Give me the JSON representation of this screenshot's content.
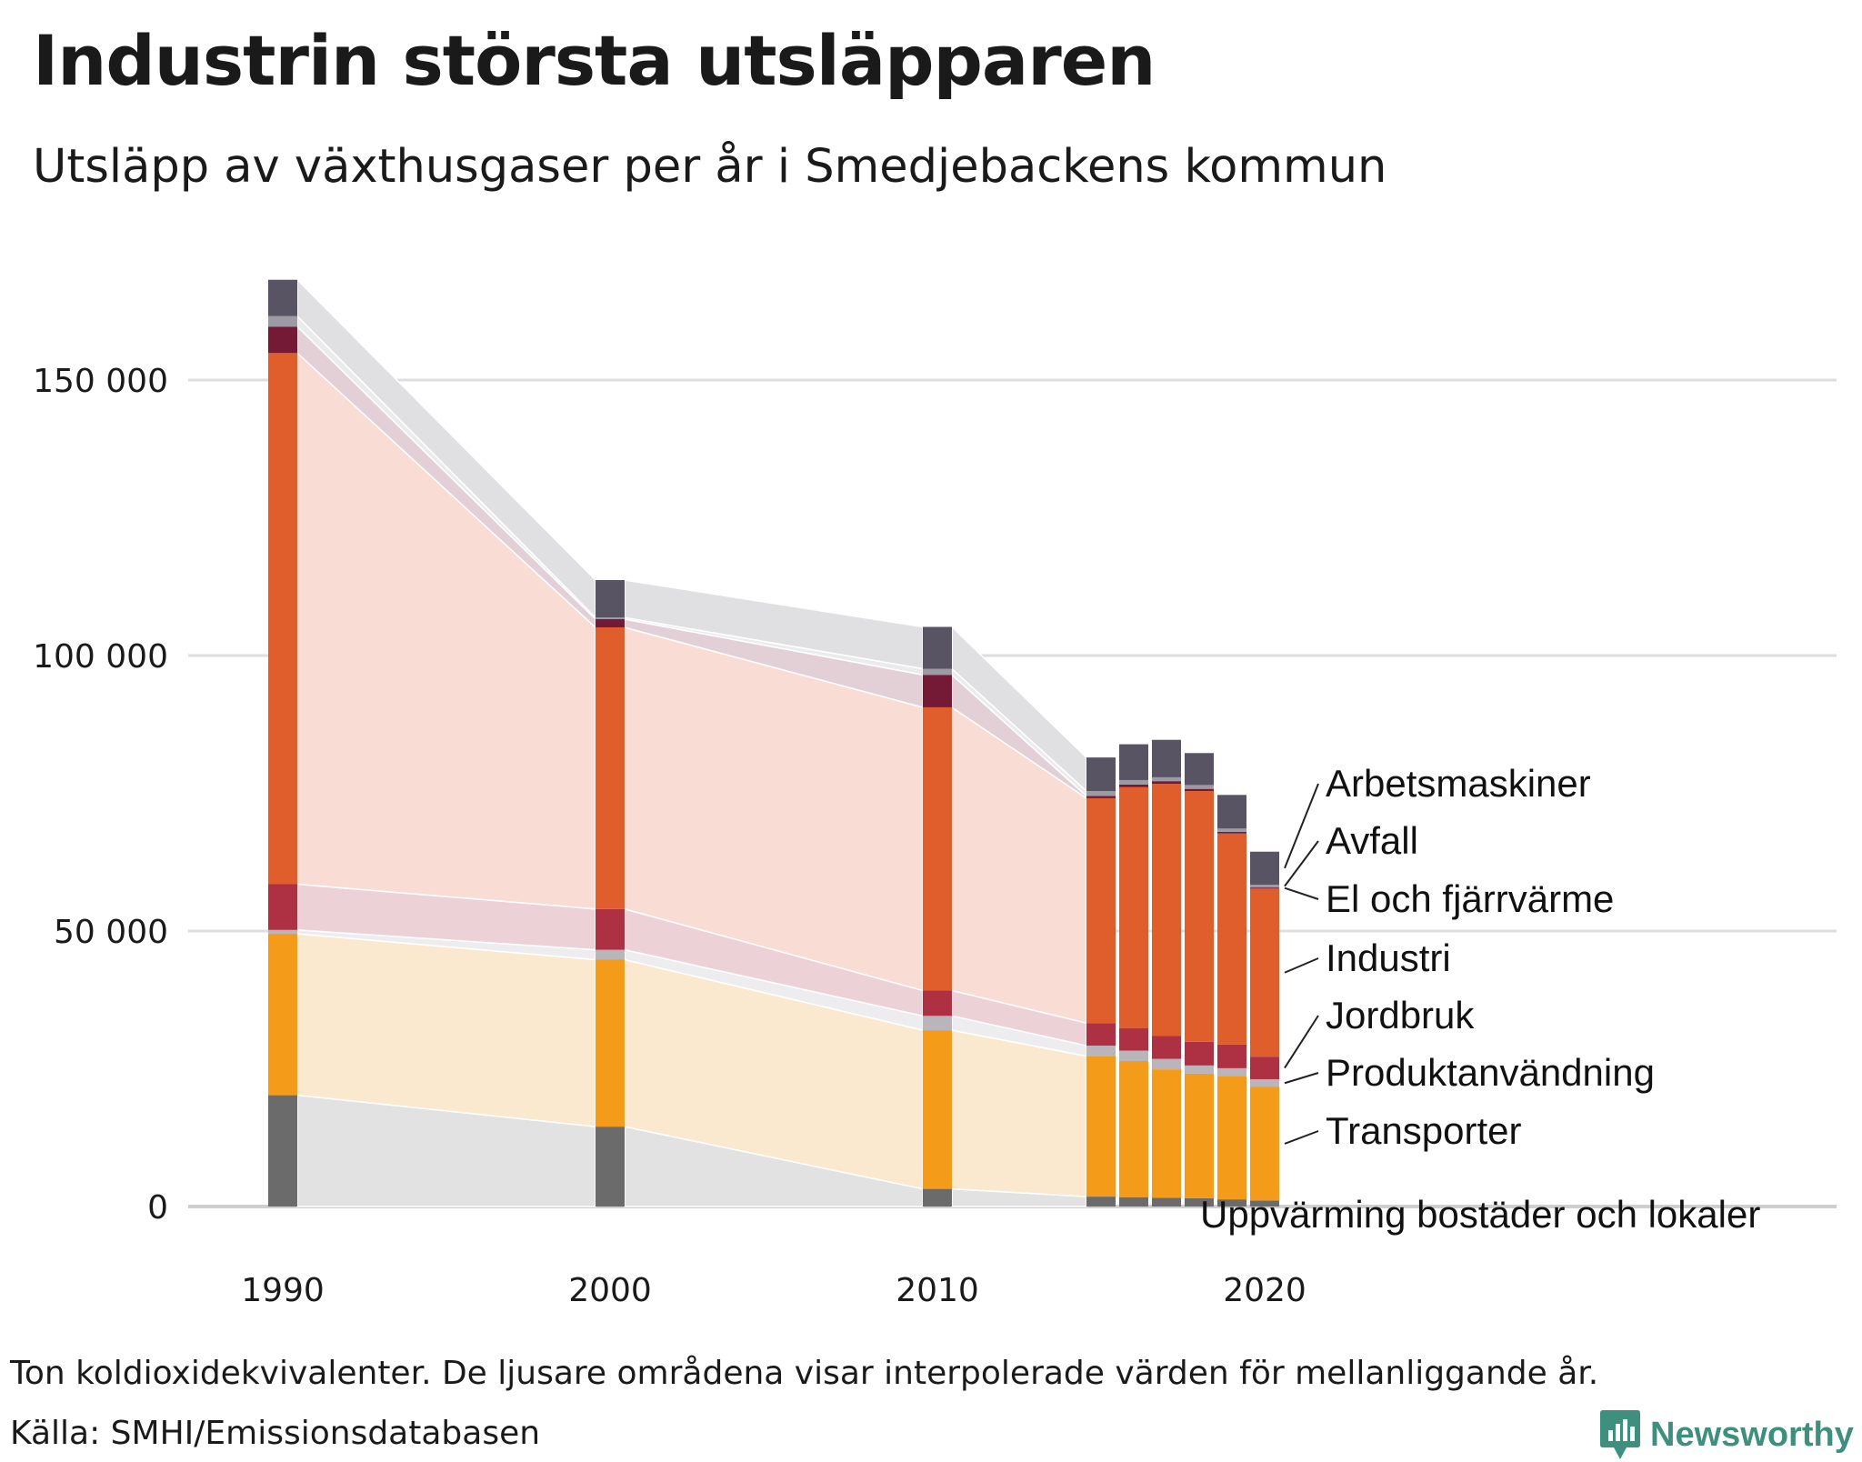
{
  "title": "Industrin största utsläpparen",
  "subtitle": "Utsläpp av växthusgaser per år i Smedjebackens kommun",
  "footnote": "Ton koldioxidekvivalenter. De ljusare områdena visar interpolerade värden för mellanliggande år.",
  "source": "Källa: SMHI/Emissionsdatabasen",
  "brand": "Newsworthy",
  "chart_data": {
    "type": "bar",
    "stacked": true,
    "x": [
      1990,
      2000,
      2010,
      2015,
      2016,
      2017,
      2018,
      2019,
      2020
    ],
    "x_ticks": [
      "1990",
      "2000",
      "2010",
      "2020"
    ],
    "y_ticks": [
      "0",
      "50 000",
      "100 000",
      "150 000"
    ],
    "y_tick_values": [
      0,
      50000,
      100000,
      150000
    ],
    "ylim": [
      0,
      170000
    ],
    "xlim": [
      1985,
      2037
    ],
    "grid": true,
    "interpolated_bands_between_measured_years": true,
    "series": [
      {
        "name": "Uppvärming bostäder och lokaler",
        "color": "#6b6b6b",
        "band_color": "#e2e2e2",
        "values": [
          20200,
          14500,
          3200,
          1800,
          1700,
          1600,
          1500,
          1300,
          1100
        ]
      },
      {
        "name": "Transporter",
        "color": "#f59b1a",
        "band_color": "#fbe9cf",
        "values": [
          29300,
          30300,
          28800,
          25500,
          24700,
          23300,
          22600,
          22400,
          20600
        ]
      },
      {
        "name": "Produktanvändning",
        "color": "#b9b5bb",
        "band_color": "#ededf0",
        "values": [
          700,
          1800,
          2600,
          1900,
          1900,
          1900,
          1500,
          1400,
          1400
        ]
      },
      {
        "name": "Jordbruk",
        "color": "#ad3143",
        "band_color": "#ecd2d6",
        "values": [
          8300,
          7400,
          4600,
          4100,
          4100,
          4200,
          4300,
          4300,
          4100
        ]
      },
      {
        "name": "Industri",
        "color": "#e05e2c",
        "band_color": "#f9ddd4",
        "values": [
          96400,
          51100,
          51400,
          40800,
          43700,
          45700,
          45500,
          38300,
          30500
        ]
      },
      {
        "name": "El och fjärrvärme",
        "color": "#741a37",
        "band_color": "#e3d0d7",
        "values": [
          4800,
          1500,
          5900,
          400,
          500,
          500,
          400,
          300,
          200
        ]
      },
      {
        "name": "Avfall",
        "color": "#9c9ba3",
        "band_color": "#ebebed",
        "values": [
          1900,
          300,
          1100,
          900,
          800,
          700,
          700,
          600,
          500
        ]
      },
      {
        "name": "Arbetsmaskiner",
        "color": "#585464",
        "band_color": "#e0e0e3",
        "values": [
          6600,
          6800,
          7600,
          6100,
          6500,
          6800,
          5800,
          6100,
          6000
        ]
      }
    ]
  }
}
